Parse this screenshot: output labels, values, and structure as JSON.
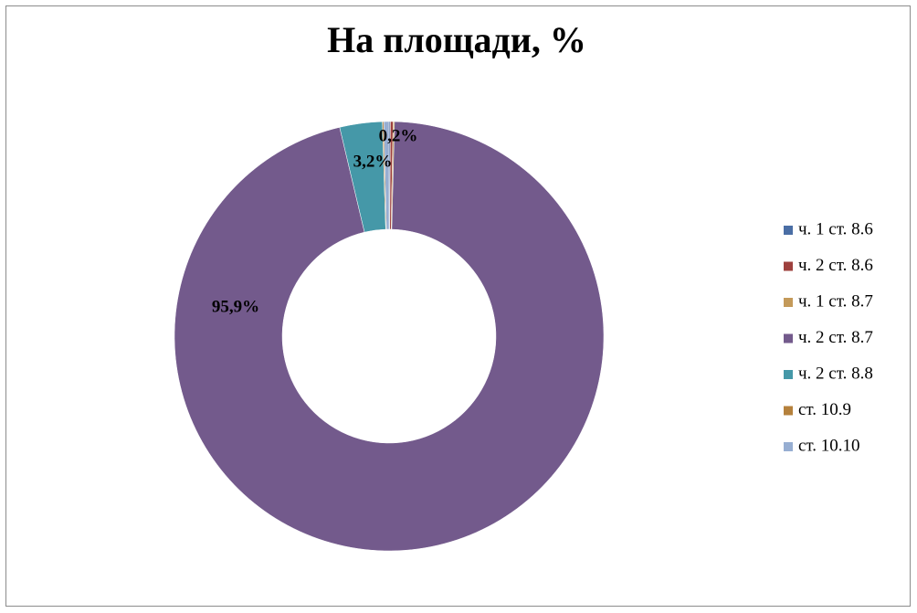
{
  "chart_data": {
    "type": "donut",
    "title": "На площади, %",
    "categories": [
      "ч. 1 ст. 8.6",
      "ч. 2 ст. 8.6",
      "ч. 1 ст. 8.7",
      "ч. 2 ст. 8.7",
      "ч. 2 ст. 8.8",
      "ст. 10.9",
      "ст. 10.10"
    ],
    "values": [
      0.1,
      0.2,
      0.1,
      95.9,
      3.2,
      0.1,
      0.4
    ],
    "value_labels": [
      null,
      "0,2%",
      null,
      "95,9%",
      "3,2%",
      null,
      null
    ],
    "colors": [
      "#4a6ea5",
      "#9e413e",
      "#c49a5a",
      "#735a8c",
      "#4598a8",
      "#b5813c",
      "#97aed2"
    ],
    "legend": "right"
  }
}
